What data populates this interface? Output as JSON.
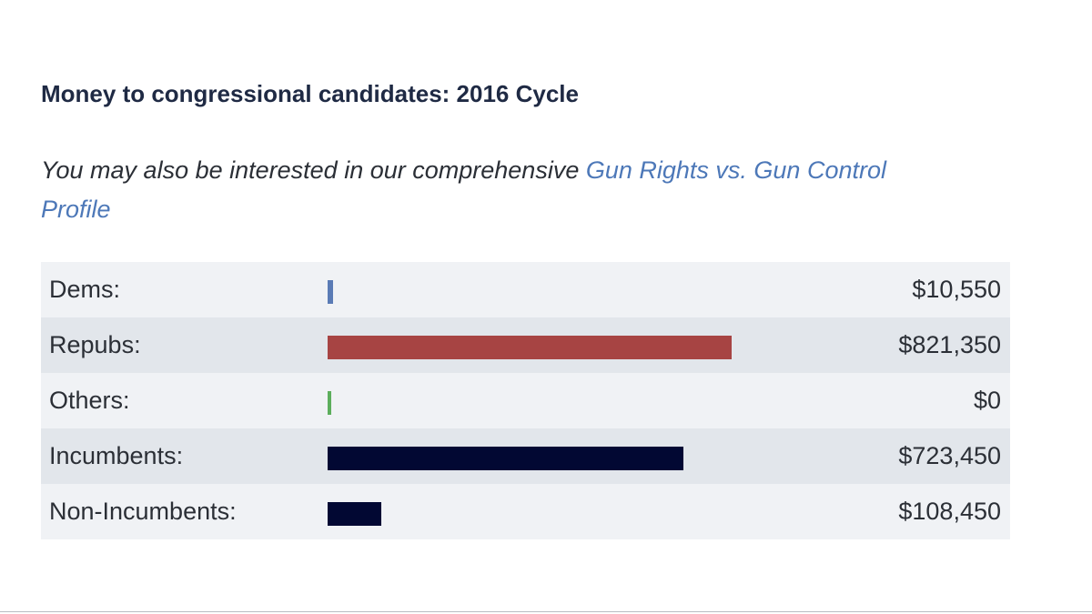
{
  "title": "Money to congressional candidates: 2016 Cycle",
  "intro": {
    "text": "You may also be interested in our comprehensive ",
    "link_text": "Gun Rights vs. Gun Control Profile"
  },
  "colors": {
    "dems": "#5a7bb5",
    "repubs": "#a74443",
    "others": "#5cae5c",
    "incumbency": "#020833",
    "link": "#4d78b8",
    "row_light": "#f0f2f5",
    "row_dark": "#e2e6eb"
  },
  "chart_data": {
    "type": "bar",
    "orientation": "horizontal",
    "title": "Money to congressional candidates: 2016 Cycle",
    "categories": [
      "Dems:",
      "Repubs:",
      "Others:",
      "Incumbents:",
      "Non-Incumbents:"
    ],
    "values": [
      10550,
      821350,
      0,
      723450,
      108450
    ],
    "value_labels": [
      "$10,550",
      "$821,350",
      "$0",
      "$723,450",
      "$108,450"
    ],
    "bar_colors": [
      "#5a7bb5",
      "#a74443",
      "#5cae5c",
      "#020833",
      "#020833"
    ],
    "xlim": [
      0,
      821350
    ],
    "grid": false,
    "legend": "none"
  }
}
